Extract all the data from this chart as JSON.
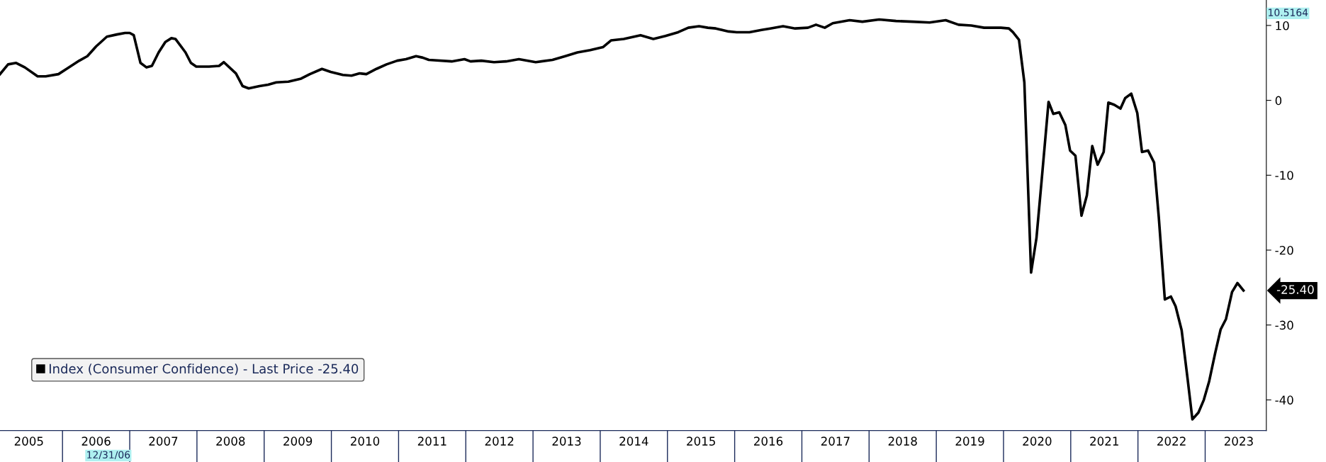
{
  "chart_data": {
    "type": "line",
    "x": [
      2005.07,
      2005.19,
      2005.31,
      2005.44,
      2005.63,
      2005.75,
      2005.94,
      2006.06,
      2006.25,
      2006.37,
      2006.5,
      2006.66,
      2006.81,
      2006.93,
      2007.0,
      2007.06,
      2007.16,
      2007.25,
      2007.33,
      2007.43,
      2007.53,
      2007.62,
      2007.68,
      2007.83,
      2007.91,
      2007.99,
      2008.18,
      2008.33,
      2008.4,
      2008.58,
      2008.68,
      2008.77,
      2008.93,
      2009.06,
      2009.18,
      2009.36,
      2009.55,
      2009.68,
      2009.86,
      2009.99,
      2010.17,
      2010.3,
      2010.42,
      2010.52,
      2010.67,
      2010.82,
      2010.98,
      2011.11,
      2011.26,
      2011.36,
      2011.45,
      2011.79,
      2011.98,
      2012.07,
      2012.23,
      2012.42,
      2012.6,
      2012.79,
      2013.04,
      2013.29,
      2013.48,
      2013.66,
      2013.85,
      2014.04,
      2014.16,
      2014.35,
      2014.6,
      2014.79,
      2014.97,
      2015.16,
      2015.31,
      2015.47,
      2015.6,
      2015.72,
      2015.91,
      2016.03,
      2016.22,
      2016.4,
      2016.53,
      2016.72,
      2016.9,
      2017.09,
      2017.21,
      2017.34,
      2017.46,
      2017.71,
      2017.9,
      2018.15,
      2018.4,
      2018.65,
      2018.9,
      2019.14,
      2019.33,
      2019.52,
      2019.71,
      2019.83,
      2019.96,
      2020.08,
      2020.14,
      2020.23,
      2020.31,
      2020.41,
      2020.49,
      2020.58,
      2020.67,
      2020.74,
      2020.83,
      2020.92,
      2020.99,
      2021.07,
      2021.16,
      2021.24,
      2021.32,
      2021.4,
      2021.49,
      2021.56,
      2021.65,
      2021.74,
      2021.81,
      2021.9,
      2021.99,
      2022.06,
      2022.15,
      2022.24,
      2022.31,
      2022.4,
      2022.49,
      2022.56,
      2022.65,
      2022.74,
      2022.81,
      2022.9,
      2022.98,
      2023.06,
      2023.15,
      2023.23,
      2023.31,
      2023.4,
      2023.48,
      2023.57
    ],
    "series": [
      {
        "name": "Index (Consumer Confidence) - Last Price -25.40",
        "color": "#000000",
        "values": [
          3.5,
          4.8,
          5.0,
          4.4,
          3.2,
          3.2,
          3.5,
          4.2,
          5.3,
          5.9,
          7.2,
          8.5,
          8.8,
          9.0,
          9.0,
          8.7,
          5.0,
          4.4,
          4.6,
          6.4,
          7.8,
          8.3,
          8.2,
          6.4,
          5.0,
          4.5,
          4.5,
          4.6,
          5.1,
          3.6,
          1.9,
          1.6,
          1.9,
          2.1,
          2.4,
          2.5,
          2.9,
          3.5,
          4.2,
          3.8,
          3.4,
          3.3,
          3.6,
          3.5,
          4.2,
          4.8,
          5.3,
          5.5,
          5.9,
          5.7,
          5.4,
          5.2,
          5.5,
          5.2,
          5.3,
          5.1,
          5.2,
          5.5,
          5.1,
          5.4,
          5.9,
          6.4,
          6.7,
          7.1,
          8.0,
          8.2,
          8.7,
          8.2,
          8.6,
          9.1,
          9.7,
          9.9,
          9.7,
          9.6,
          9.2,
          9.1,
          9.1,
          9.4,
          9.6,
          9.9,
          9.6,
          9.7,
          10.1,
          9.7,
          10.3,
          10.7,
          10.5,
          10.8,
          10.6,
          10.5,
          10.4,
          10.7,
          10.1,
          10.0,
          9.7,
          9.7,
          9.7,
          9.6,
          9.1,
          8.1,
          2.4,
          -23.0,
          -18.4,
          -9.4,
          -0.2,
          -1.8,
          -1.6,
          -3.3,
          -6.7,
          -7.4,
          -15.4,
          -12.7,
          -6.1,
          -8.6,
          -6.9,
          -0.3,
          -0.6,
          -1.1,
          0.3,
          0.9,
          -1.7,
          -6.9,
          -6.7,
          -8.3,
          -15.6,
          -26.6,
          -26.2,
          -27.5,
          -30.7,
          -37.3,
          -42.6,
          -41.7,
          -40.0,
          -37.5,
          -33.7,
          -30.6,
          -29.2,
          -25.6,
          -24.4,
          -25.4
        ]
      }
    ],
    "xlim": [
      2005.07,
      2023.91
    ],
    "xticks": [
      {
        "value": 2005.5,
        "label": "2005"
      },
      {
        "value": 2006.5,
        "label": "2006"
      },
      {
        "value": 2007.5,
        "label": "2007"
      },
      {
        "value": 2008.5,
        "label": "2008"
      },
      {
        "value": 2009.5,
        "label": "2009"
      },
      {
        "value": 2010.5,
        "label": "2010"
      },
      {
        "value": 2011.5,
        "label": "2011"
      },
      {
        "value": 2012.5,
        "label": "2012"
      },
      {
        "value": 2013.5,
        "label": "2013"
      },
      {
        "value": 2014.5,
        "label": "2014"
      },
      {
        "value": 2015.5,
        "label": "2015"
      },
      {
        "value": 2016.5,
        "label": "2016"
      },
      {
        "value": 2017.5,
        "label": "2017"
      },
      {
        "value": 2018.5,
        "label": "2018"
      },
      {
        "value": 2019.5,
        "label": "2019"
      },
      {
        "value": 2020.5,
        "label": "2020"
      },
      {
        "value": 2021.5,
        "label": "2021"
      },
      {
        "value": 2022.5,
        "label": "2022"
      },
      {
        "value": 2023.5,
        "label": "2023"
      }
    ],
    "ylim": [
      -44.1,
      13.4
    ],
    "yticks": [
      -40,
      -30,
      -20,
      -10,
      0,
      10
    ],
    "grid": false,
    "legend": "bottom left",
    "annotations": [
      "10.5164",
      "-25.40",
      "12/31/06"
    ]
  }
}
